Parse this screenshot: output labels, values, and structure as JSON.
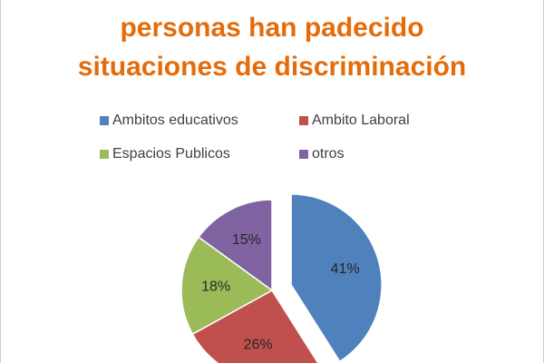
{
  "chart_data": {
    "type": "pie",
    "title": [
      "personas han padecido",
      "situaciones de discriminación"
    ],
    "categories": [
      "Ambitos educativos",
      "Ambito Laboral",
      "Espacios Publicos",
      "otros"
    ],
    "values": [
      41,
      26,
      18,
      15
    ],
    "value_labels": [
      "41%",
      "26%",
      "18%",
      "15%"
    ],
    "colors": [
      "#4F81BD",
      "#C0504D",
      "#9BBB59",
      "#8064A2"
    ],
    "exploded": [
      true,
      false,
      false,
      false
    ],
    "legend": "top"
  }
}
